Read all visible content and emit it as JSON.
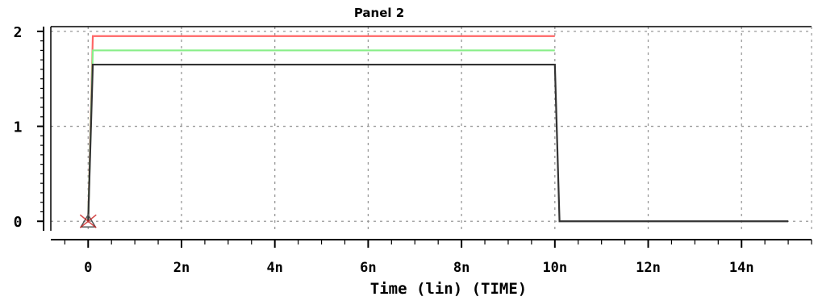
{
  "chart_data": {
    "type": "line",
    "title": "Panel 2",
    "xlabel": "Time (lin) (TIME)",
    "ylabel": "",
    "xlim": [
      -1e-125,
      15.5
    ],
    "ylim": [
      -0.1,
      2.05
    ],
    "x_unit": "ns",
    "x_ticks": [
      {
        "value": 0,
        "label": "0"
      },
      {
        "value": 2,
        "label": "2n"
      },
      {
        "value": 4,
        "label": "4n"
      },
      {
        "value": 6,
        "label": "6n"
      },
      {
        "value": 8,
        "label": "8n"
      },
      {
        "value": 10,
        "label": "10n"
      },
      {
        "value": 12,
        "label": "12n"
      },
      {
        "value": 14,
        "label": "14n"
      }
    ],
    "y_ticks": [
      {
        "value": 0,
        "label": "0"
      },
      {
        "value": 1,
        "label": "1"
      },
      {
        "value": 2,
        "label": "2"
      }
    ],
    "grid": true,
    "grid_style": "dotted",
    "series": [
      {
        "color": "#ff6666",
        "x": [
          0,
          0.1,
          0.1,
          10.0
        ],
        "y": [
          0,
          1.95,
          1.95,
          1.95
        ]
      },
      {
        "color": "#88ee88",
        "x": [
          0,
          0.1,
          0.1,
          10.0
        ],
        "y": [
          0,
          1.8,
          1.8,
          1.8
        ]
      },
      {
        "color": "#333333",
        "x": [
          0,
          0.1,
          0.1,
          10.0,
          10.1,
          10.1,
          15.0
        ],
        "y": [
          0,
          1.65,
          1.65,
          1.65,
          0,
          0,
          0
        ]
      }
    ],
    "origin_marker": "triangle-x",
    "colors": {
      "grid": "#999999",
      "axis": "#000000",
      "marker": "#cc2222"
    }
  }
}
